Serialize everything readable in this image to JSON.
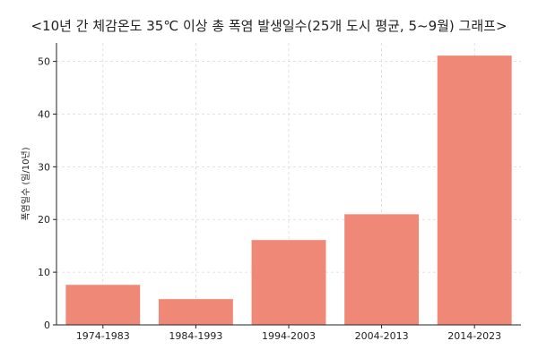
{
  "chart_data": {
    "type": "bar",
    "title": "<10년 간 체감온도 35℃ 이상 총 폭염 발생일수(25개 도시 평균, 5~9월) 그래프>",
    "xlabel": "",
    "ylabel": "폭염일수 (일/10년)",
    "categories": [
      "1974-1983",
      "1984-1993",
      "1994-2003",
      "2004-2013",
      "2014-2023"
    ],
    "values": [
      7.6,
      4.9,
      16.1,
      21.0,
      51.1
    ],
    "ylim": [
      0,
      53.5
    ],
    "yticks": [
      0,
      10,
      20,
      30,
      40,
      50
    ],
    "grid": true,
    "bar_color": "#f08878",
    "grid_color": "#d9d9d9"
  }
}
